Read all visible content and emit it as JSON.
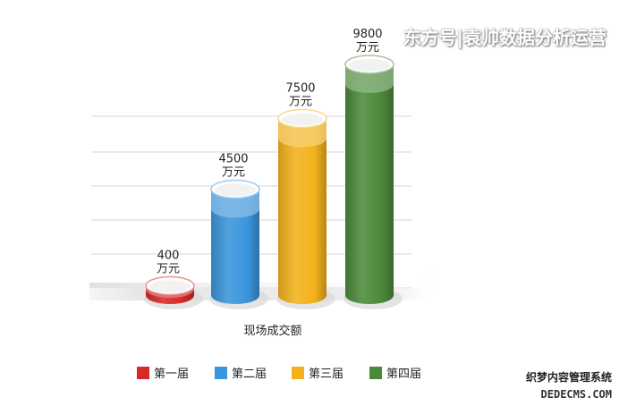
{
  "chart_data": {
    "type": "bar",
    "title": "",
    "xlabel": "现场成交额",
    "ylabel": "",
    "categories": [
      "第一届",
      "第二届",
      "第三届",
      "第四届"
    ],
    "values": [
      400,
      4500,
      7500,
      9800
    ],
    "data_labels": [
      [
        "400",
        "万元"
      ],
      [
        "4500",
        "万元"
      ],
      [
        "7500",
        "万元"
      ],
      [
        "9800",
        "万元"
      ]
    ],
    "colors": [
      "#d62a26",
      "#3a95dc",
      "#f3b21c",
      "#4b8a3a"
    ],
    "ylim": [
      0,
      9800
    ],
    "grid": true,
    "legend_position": "bottom"
  },
  "watermark": {
    "top": "东方号|袁帅数据分析运营",
    "bottom_line1": "织梦内容管理系统",
    "bottom_line2": "DEDECMS.COM"
  }
}
